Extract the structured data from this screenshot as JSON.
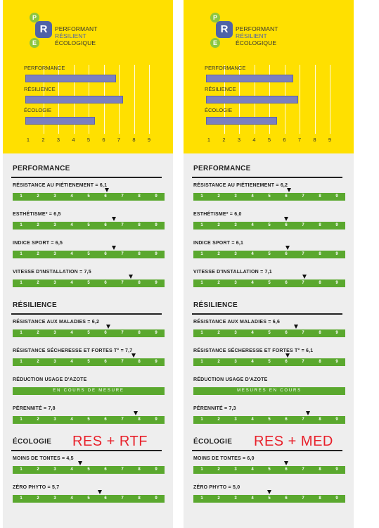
{
  "cards": [
    {
      "id": "left",
      "brand": {
        "logo_letters": [
          "P",
          "R",
          "E"
        ],
        "line1": "PERFORMANT",
        "line2": "RÉSILIENT",
        "line3": "ÉCOLOGIQUE"
      },
      "chart_data": {
        "type": "bar",
        "orientation": "horizontal",
        "categories": [
          "PERFORMANCE",
          "RÉSILIENCE",
          "ÉCOLOGIE"
        ],
        "values": [
          6.8,
          7.3,
          5.4
        ],
        "xticks": [
          "1",
          "2",
          "3",
          "4",
          "5",
          "6",
          "7",
          "8",
          "9"
        ],
        "xlim": [
          1,
          9
        ]
      },
      "sections": [
        {
          "title": "PERFORMANCE",
          "items": [
            {
              "label": "RÉSISTANCE AU PIÉTIENEMENT = 6,1",
              "value": 6.1
            },
            {
              "label": "ESTHÉTISME* = 6,5",
              "value": 6.5
            },
            {
              "label": "INDICE SPORT = 6,5",
              "value": 6.5
            },
            {
              "label": "VITESSE D'INSTALLATION = 7,5",
              "value": 7.5
            }
          ]
        },
        {
          "title": "RÉSILIENCE",
          "items": [
            {
              "label": "RÉSISTANCE AUX MALADIES = 6,2",
              "value": 6.2
            },
            {
              "label": "RÉSISTANCE SÉCHERESSE ET FORTES T° = 7,7",
              "value": 7.7
            },
            {
              "label": "RÉDUCTION USAGE D'AZOTE",
              "pending": "EN COURS DE MESURE"
            },
            {
              "label": "PÉRENNITÉ = 7,8",
              "value": 7.8
            }
          ]
        },
        {
          "title": "ÉCOLOGIE",
          "items": [
            {
              "label": "MOINS DE TONTES = 4,5",
              "value": 4.5
            },
            {
              "label": "ZÉRO PHYTO = 5,7",
              "value": 5.7
            }
          ]
        }
      ],
      "stamp": "RES + RTF"
    },
    {
      "id": "right",
      "brand": {
        "logo_letters": [
          "P",
          "R",
          "E"
        ],
        "line1": "PERFORMANT",
        "line2": "RÉSILIENT",
        "line3": "ÉCOLOGIQUE"
      },
      "chart_data": {
        "type": "bar",
        "orientation": "horizontal",
        "categories": [
          "PERFORMANCE",
          "RÉSILIENCE",
          "ÉCOLOGIE"
        ],
        "values": [
          6.6,
          6.9,
          5.5
        ],
        "xticks": [
          "1",
          "2",
          "3",
          "4",
          "5",
          "6",
          "7",
          "8",
          "9"
        ],
        "xlim": [
          1,
          9
        ]
      },
      "sections": [
        {
          "title": "PERFORMANCE",
          "items": [
            {
              "label": "RÉSISTANCE AU PIÉTIENEMENT = 6,2",
              "value": 6.2
            },
            {
              "label": "ESTHÉTISME* = 6,0",
              "value": 6.0
            },
            {
              "label": "INDICE SPORT = 6,1",
              "value": 6.1
            },
            {
              "label": "VITESSE D'INSTALLATION = 7,1",
              "value": 7.1
            }
          ]
        },
        {
          "title": "RÉSILIENCE",
          "items": [
            {
              "label": "RÉSISTANCE AUX MALADIES = 6,6",
              "value": 6.6
            },
            {
              "label": "RÉSISTANCE SÉCHERESSE ET FORTES T° = 6,1",
              "value": 6.1
            },
            {
              "label": "RÉDUCTION USAGE D'AZOTE",
              "pending": "MESURES EN COURS"
            },
            {
              "label": "PÉRENNITÉ = 7,3",
              "value": 7.3
            }
          ]
        },
        {
          "title": "ÉCOLOGIE",
          "items": [
            {
              "label": "MOINS DE TONTES = 6,0",
              "value": 6.0
            },
            {
              "label": "ZÉRO PHYTO = 5,0",
              "value": 5.0
            }
          ]
        }
      ],
      "stamp": "RES + MED"
    }
  ],
  "scale_numbers": [
    "1",
    "2",
    "3",
    "4",
    "5",
    "6",
    "7",
    "8",
    "9"
  ],
  "colors": {
    "header": "#ffe000",
    "bar": "#7b7fc0",
    "scale": "#5aa82e",
    "stamp": "#e8202a",
    "logo_green": "#8cc63f",
    "logo_blue": "#4f63a8"
  }
}
